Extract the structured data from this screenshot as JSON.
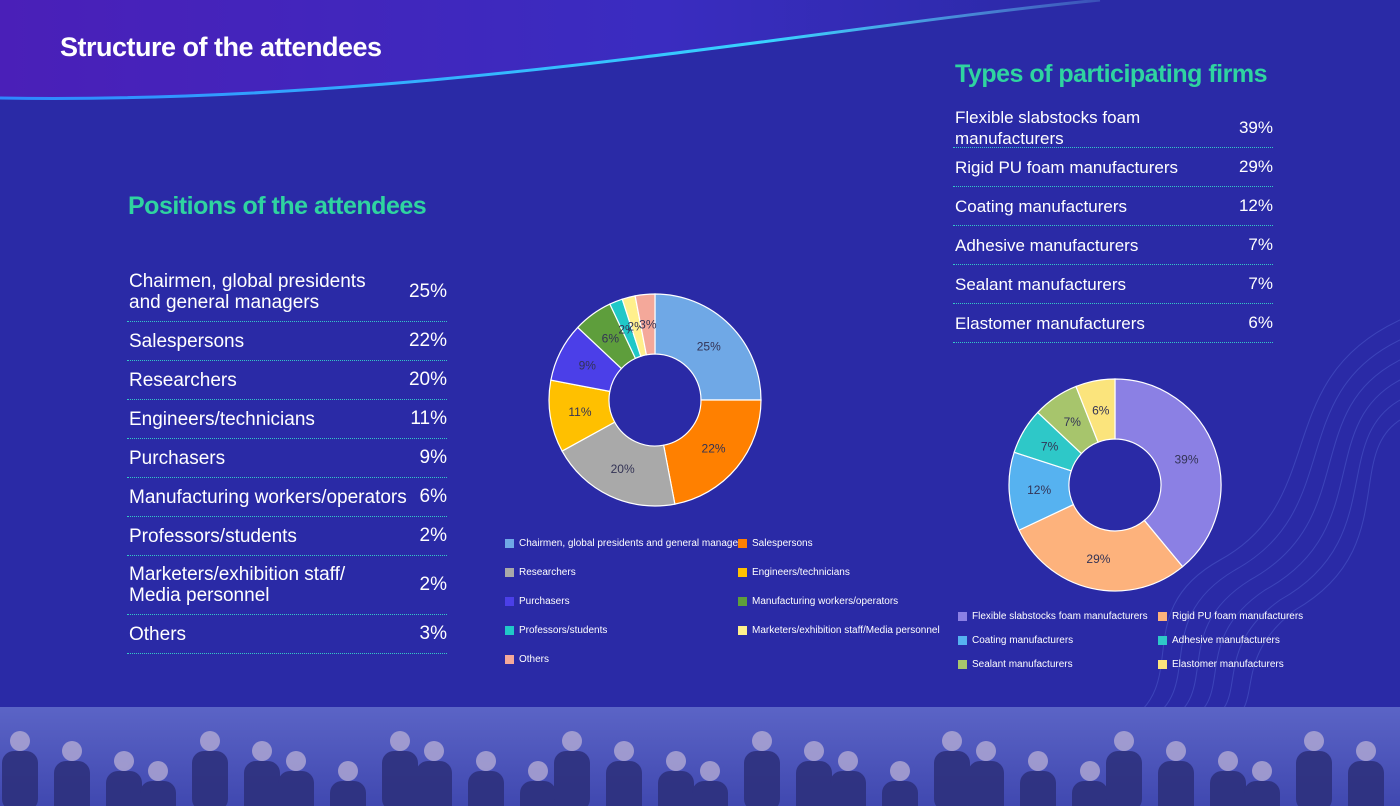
{
  "page": {
    "title": "Structure of the attendees"
  },
  "positions": {
    "heading": "Positions of the attendees",
    "rows": [
      {
        "label_line1": "Chairmen, global presidents",
        "label_line2": "and general managers",
        "pct": "25%"
      },
      {
        "label": "Salespersons",
        "pct": "22%"
      },
      {
        "label": "Researchers",
        "pct": "20%"
      },
      {
        "label": "Engineers/technicians",
        "pct": "11%"
      },
      {
        "label": "Purchasers",
        "pct": "9%"
      },
      {
        "label": "Manufacturing workers/operators",
        "pct": "6%"
      },
      {
        "label": "Professors/students",
        "pct": "2%"
      },
      {
        "label_line1": "Marketers/exhibition staff/",
        "label_line2": "Media personnel",
        "pct": "2%"
      },
      {
        "label": "Others",
        "pct": "3%"
      }
    ]
  },
  "firms": {
    "heading": "Types of participating firms",
    "rows": [
      {
        "label": "Flexible slabstocks foam manufacturers",
        "pct": "39%"
      },
      {
        "label": "Rigid PU foam manufacturers",
        "pct": "29%"
      },
      {
        "label": "Coating manufacturers",
        "pct": "12%"
      },
      {
        "label": "Adhesive manufacturers",
        "pct": "7%"
      },
      {
        "label": "Sealant manufacturers",
        "pct": "7%"
      },
      {
        "label": "Elastomer manufacturers",
        "pct": "6%"
      }
    ]
  },
  "chart_data": [
    {
      "type": "pie",
      "donut": true,
      "title": "Positions of the attendees",
      "categories": [
        "Chairmen, global presidents and general managers",
        "Salespersons",
        "Researchers",
        "Engineers/technicians",
        "Purchasers",
        "Manufacturing workers/operators",
        "Professors/students",
        "Marketers/exhibition staff/Media personnel",
        "Others"
      ],
      "values": [
        25,
        22,
        20,
        11,
        9,
        6,
        2,
        2,
        3
      ],
      "data_labels": [
        "25%",
        "22%",
        "20%",
        "11%",
        "9%",
        "6%",
        "2%",
        "2%",
        "3%"
      ],
      "colors": [
        "#6fa8e6",
        "#ff8000",
        "#a9a9a9",
        "#ffc000",
        "#4b3fe8",
        "#5e9e3c",
        "#20c8c8",
        "#fff08c",
        "#f4a89a"
      ],
      "legend_position": "bottom"
    },
    {
      "type": "pie",
      "donut": true,
      "title": "Types of participating firms",
      "categories": [
        "Flexible slabstocks foam manufacturers",
        "Rigid PU foam manufacturers",
        "Coating manufacturers",
        "Adhesive manufacturers",
        "Sealant manufacturers",
        "Elastomer manufacturers"
      ],
      "values": [
        39,
        29,
        12,
        7,
        7,
        6
      ],
      "data_labels": [
        "39%",
        "29%",
        "12%",
        "7%",
        "7%",
        "6%"
      ],
      "colors": [
        "#8b80e4",
        "#fdb27c",
        "#56b2f0",
        "#2ec8c8",
        "#a7c56c",
        "#fbe47c"
      ],
      "legend_position": "bottom"
    }
  ]
}
